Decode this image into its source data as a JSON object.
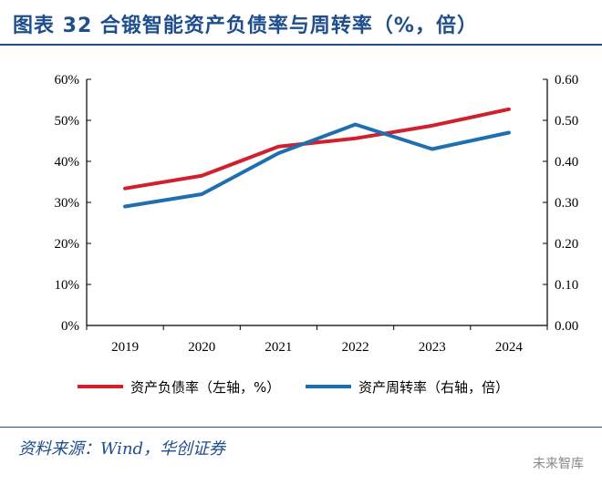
{
  "title": "图表 32   合锻智能资产负债率与周转率（%，倍）",
  "source": "资料来源：Wind，华创证券",
  "watermark": "未来智库",
  "chart_data": {
    "type": "line",
    "categories": [
      "2019",
      "2020",
      "2021",
      "2022",
      "2023",
      "2024"
    ],
    "y_left": {
      "ylim": [
        0,
        60
      ],
      "ticks": [
        "0%",
        "10%",
        "20%",
        "30%",
        "40%",
        "50%",
        "60%"
      ]
    },
    "y_right": {
      "ylim": [
        0,
        0.6
      ],
      "ticks": [
        "0.00",
        "0.10",
        "0.20",
        "0.30",
        "0.40",
        "0.50",
        "0.60"
      ]
    },
    "series": [
      {
        "name": "资产负债率（左轴，%）",
        "axis": "left",
        "color": "#d0202e",
        "values": [
          33.4,
          36.5,
          43.6,
          45.6,
          48.7,
          52.7
        ]
      },
      {
        "name": "资产周转率（右轴，倍）",
        "axis": "right",
        "color": "#1f6fb0",
        "values": [
          0.29,
          0.32,
          0.42,
          0.49,
          0.43,
          0.47
        ]
      }
    ],
    "grid": false,
    "legend": "bottom"
  }
}
